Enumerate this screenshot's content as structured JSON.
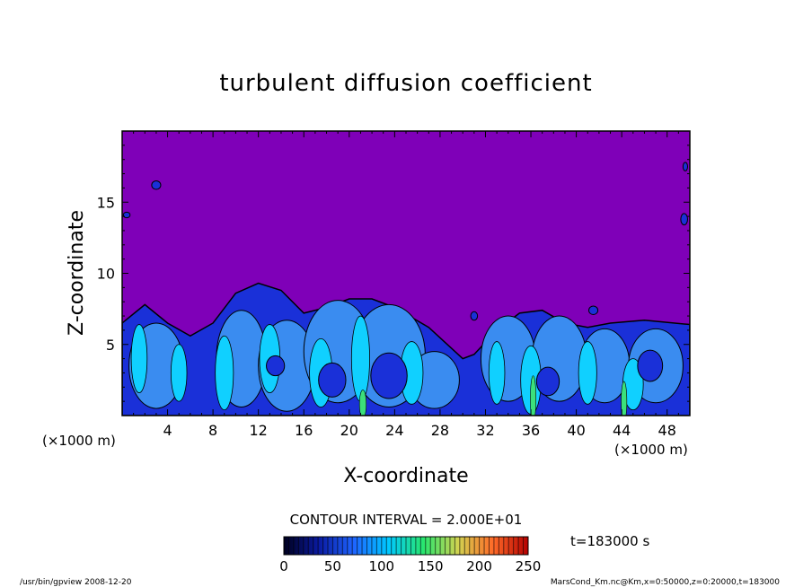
{
  "chart_data": {
    "type": "heatmap",
    "title": "turbulent diffusion coefficient",
    "xlabel": "X-coordinate",
    "ylabel": "Z-coordinate",
    "x_unit": "(×1000 m)",
    "y_unit": "(×1000 m)",
    "xlim": [
      0,
      50
    ],
    "ylim": [
      0,
      20
    ],
    "x_ticks": [
      4,
      8,
      12,
      16,
      20,
      24,
      28,
      32,
      36,
      40,
      44,
      48
    ],
    "y_ticks": [
      5,
      10,
      15
    ],
    "contour_interval_text": "CONTOUR INTERVAL = 2.000E+01",
    "time_text": "t=183000 s",
    "colorbar": {
      "min": 0,
      "max": 250,
      "ticks": [
        0,
        50,
        100,
        150,
        200,
        250
      ],
      "colors": [
        "#00001e",
        "#0a1aa0",
        "#1e64ff",
        "#00c8ff",
        "#28e66e",
        "#d2d250",
        "#ff6a28",
        "#b40000"
      ]
    },
    "colors": {
      "background_field": "#7f00b8",
      "low": "#1a30d8",
      "mid": "#3a8cf0",
      "high": "#10d0ff",
      "peak": "#3ce07a"
    }
  },
  "footer": {
    "left": "/usr/bin/gpview   2008-12-20",
    "right": "MarsCond_Km.nc@Km,x=0:50000,z=0:20000,t=183000"
  }
}
